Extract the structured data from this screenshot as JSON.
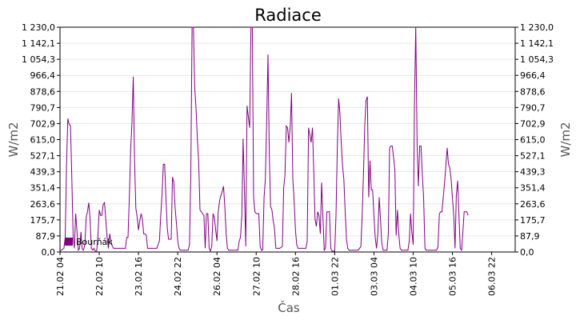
{
  "chart_data": {
    "type": "line",
    "title": "Radiace",
    "xlabel": "Čas",
    "ylabel": "W/m2",
    "ylabel_right": "W/m2",
    "ylim": [
      0,
      1230
    ],
    "y_ticks": [
      0,
      87.9,
      175.7,
      263.6,
      351.4,
      439.3,
      527.1,
      615.0,
      702.9,
      790.7,
      878.6,
      966.4,
      1054.3,
      1142.1,
      1230.0
    ],
    "y_tick_labels": [
      "0,0",
      "87,9",
      "175,7",
      "263,6",
      "351,4",
      "439,3",
      "527,1",
      "615,0",
      "702,9",
      "790,7",
      "878,6",
      "966,4",
      "1 054,3",
      "1 142,1",
      "1 230,0"
    ],
    "x_unit": "hours since first tick",
    "xlim": [
      0,
      348
    ],
    "x_ticks": [
      0,
      30,
      60,
      90,
      120,
      150,
      180,
      210,
      240,
      270,
      300,
      330
    ],
    "x_tick_labels": [
      "21.02 04",
      "22.02 10",
      "23.02 16",
      "24.02 22",
      "26.02 04",
      "27.02 10",
      "28.02 16",
      "01.03 22",
      "03.03 04",
      "04.03 10",
      "05.03 16",
      "06.03 22"
    ],
    "grid": "horizontal",
    "legend": {
      "position": "bottom-left",
      "entries": [
        {
          "name": "Bourňák",
          "color": "#800080"
        }
      ]
    },
    "series": [
      {
        "name": "Bourňák",
        "color": "#800080",
        "points": [
          [
            0,
            5
          ],
          [
            3,
            20
          ],
          [
            4,
            80
          ],
          [
            5,
            480
          ],
          [
            6,
            730
          ],
          [
            7,
            700
          ],
          [
            8,
            690
          ],
          [
            9,
            420
          ],
          [
            10,
            90
          ],
          [
            11,
            20
          ],
          [
            12,
            210
          ],
          [
            13,
            110
          ],
          [
            14,
            10
          ],
          [
            15,
            20
          ],
          [
            16,
            110
          ],
          [
            17,
            15
          ],
          [
            18,
            10
          ],
          [
            19,
            40
          ],
          [
            20,
            190
          ],
          [
            21,
            220
          ],
          [
            22,
            270
          ],
          [
            23,
            180
          ],
          [
            24,
            20
          ],
          [
            25,
            10
          ],
          [
            26,
            20
          ],
          [
            27,
            5
          ],
          [
            28,
            5
          ],
          [
            29,
            90
          ],
          [
            30,
            230
          ],
          [
            31,
            200
          ],
          [
            32,
            200
          ],
          [
            33,
            260
          ],
          [
            34,
            270
          ],
          [
            35,
            180
          ],
          [
            36,
            80
          ],
          [
            37,
            20
          ],
          [
            38,
            100
          ],
          [
            39,
            60
          ],
          [
            40,
            30
          ],
          [
            41,
            20
          ],
          [
            42,
            20
          ],
          [
            44,
            20
          ],
          [
            46,
            20
          ],
          [
            48,
            20
          ],
          [
            50,
            20
          ],
          [
            51,
            80
          ],
          [
            52,
            80
          ],
          [
            53,
            300
          ],
          [
            54,
            560
          ],
          [
            55,
            700
          ],
          [
            56,
            960
          ],
          [
            57,
            500
          ],
          [
            58,
            240
          ],
          [
            59,
            190
          ],
          [
            60,
            120
          ],
          [
            61,
            170
          ],
          [
            62,
            210
          ],
          [
            63,
            180
          ],
          [
            64,
            100
          ],
          [
            65,
            100
          ],
          [
            66,
            90
          ],
          [
            67,
            20
          ],
          [
            68,
            20
          ],
          [
            70,
            20
          ],
          [
            72,
            20
          ],
          [
            74,
            20
          ],
          [
            76,
            60
          ],
          [
            77,
            200
          ],
          [
            78,
            310
          ],
          [
            79,
            480
          ],
          [
            80,
            480
          ],
          [
            81,
            300
          ],
          [
            82,
            130
          ],
          [
            83,
            70
          ],
          [
            84,
            70
          ],
          [
            85,
            70
          ],
          [
            86,
            410
          ],
          [
            87,
            380
          ],
          [
            88,
            240
          ],
          [
            89,
            160
          ],
          [
            90,
            60
          ],
          [
            91,
            20
          ],
          [
            92,
            10
          ],
          [
            94,
            10
          ],
          [
            96,
            10
          ],
          [
            98,
            10
          ],
          [
            99,
            40
          ],
          [
            100,
            420
          ],
          [
            101,
            1230
          ],
          [
            102,
            1230
          ],
          [
            103,
            900
          ],
          [
            104,
            790
          ],
          [
            105,
            620
          ],
          [
            106,
            500
          ],
          [
            107,
            230
          ],
          [
            108,
            220
          ],
          [
            109,
            210
          ],
          [
            110,
            200
          ],
          [
            111,
            20
          ],
          [
            112,
            210
          ],
          [
            113,
            210
          ],
          [
            114,
            20
          ],
          [
            115,
            5
          ],
          [
            116,
            30
          ],
          [
            117,
            210
          ],
          [
            118,
            190
          ],
          [
            119,
            120
          ],
          [
            120,
            60
          ],
          [
            121,
            220
          ],
          [
            122,
            280
          ],
          [
            123,
            310
          ],
          [
            124,
            330
          ],
          [
            125,
            360
          ],
          [
            126,
            250
          ],
          [
            127,
            100
          ],
          [
            128,
            20
          ],
          [
            129,
            10
          ],
          [
            130,
            10
          ],
          [
            132,
            10
          ],
          [
            134,
            10
          ],
          [
            136,
            10
          ],
          [
            137,
            60
          ],
          [
            138,
            80
          ],
          [
            139,
            200
          ],
          [
            140,
            620
          ],
          [
            141,
            350
          ],
          [
            142,
            30
          ],
          [
            143,
            800
          ],
          [
            144,
            740
          ],
          [
            145,
            680
          ],
          [
            146,
            1230
          ],
          [
            147,
            1230
          ],
          [
            148,
            300
          ],
          [
            149,
            220
          ],
          [
            150,
            210
          ],
          [
            151,
            210
          ],
          [
            152,
            210
          ],
          [
            153,
            30
          ],
          [
            154,
            10
          ],
          [
            155,
            10
          ],
          [
            156,
            300
          ],
          [
            157,
            400
          ],
          [
            158,
            700
          ],
          [
            159,
            1080
          ],
          [
            160,
            540
          ],
          [
            161,
            250
          ],
          [
            162,
            230
          ],
          [
            163,
            170
          ],
          [
            164,
            130
          ],
          [
            165,
            20
          ],
          [
            166,
            20
          ],
          [
            168,
            20
          ],
          [
            170,
            30
          ],
          [
            171,
            350
          ],
          [
            172,
            420
          ],
          [
            173,
            690
          ],
          [
            174,
            680
          ],
          [
            175,
            600
          ],
          [
            176,
            690
          ],
          [
            177,
            870
          ],
          [
            178,
            400
          ],
          [
            179,
            280
          ],
          [
            180,
            120
          ],
          [
            181,
            40
          ],
          [
            182,
            20
          ],
          [
            184,
            20
          ],
          [
            186,
            20
          ],
          [
            188,
            20
          ],
          [
            189,
            60
          ],
          [
            190,
            680
          ],
          [
            191,
            640
          ],
          [
            192,
            600
          ],
          [
            193,
            680
          ],
          [
            194,
            440
          ],
          [
            195,
            180
          ],
          [
            196,
            140
          ],
          [
            197,
            220
          ],
          [
            198,
            200
          ],
          [
            199,
            100
          ],
          [
            200,
            380
          ],
          [
            201,
            200
          ],
          [
            202,
            10
          ],
          [
            203,
            20
          ],
          [
            204,
            220
          ],
          [
            205,
            220
          ],
          [
            206,
            220
          ],
          [
            207,
            20
          ],
          [
            208,
            5
          ],
          [
            210,
            5
          ],
          [
            211,
            200
          ],
          [
            212,
            560
          ],
          [
            213,
            840
          ],
          [
            214,
            760
          ],
          [
            215,
            600
          ],
          [
            216,
            470
          ],
          [
            217,
            400
          ],
          [
            218,
            230
          ],
          [
            219,
            70
          ],
          [
            220,
            20
          ],
          [
            221,
            10
          ],
          [
            222,
            10
          ],
          [
            224,
            10
          ],
          [
            226,
            10
          ],
          [
            228,
            10
          ],
          [
            230,
            30
          ],
          [
            231,
            200
          ],
          [
            232,
            420
          ],
          [
            233,
            700
          ],
          [
            234,
            830
          ],
          [
            235,
            850
          ],
          [
            236,
            300
          ],
          [
            237,
            500
          ],
          [
            238,
            340
          ],
          [
            239,
            340
          ],
          [
            240,
            200
          ],
          [
            241,
            80
          ],
          [
            242,
            20
          ],
          [
            243,
            100
          ],
          [
            244,
            300
          ],
          [
            245,
            180
          ],
          [
            246,
            50
          ],
          [
            247,
            10
          ],
          [
            248,
            10
          ],
          [
            250,
            10
          ],
          [
            251,
            100
          ],
          [
            252,
            570
          ],
          [
            253,
            580
          ],
          [
            254,
            580
          ],
          [
            255,
            520
          ],
          [
            256,
            450
          ],
          [
            257,
            90
          ],
          [
            258,
            230
          ],
          [
            259,
            100
          ],
          [
            260,
            20
          ],
          [
            261,
            10
          ],
          [
            262,
            10
          ],
          [
            264,
            10
          ],
          [
            266,
            10
          ],
          [
            267,
            60
          ],
          [
            268,
            210
          ],
          [
            269,
            110
          ],
          [
            270,
            40
          ],
          [
            271,
            820
          ],
          [
            272,
            1230
          ],
          [
            273,
            580
          ],
          [
            274,
            360
          ],
          [
            275,
            580
          ],
          [
            276,
            580
          ],
          [
            277,
            420
          ],
          [
            278,
            300
          ],
          [
            279,
            20
          ],
          [
            280,
            10
          ],
          [
            282,
            10
          ],
          [
            284,
            10
          ],
          [
            286,
            10
          ],
          [
            288,
            10
          ],
          [
            289,
            30
          ],
          [
            290,
            210
          ],
          [
            291,
            220
          ],
          [
            292,
            220
          ],
          [
            293,
            300
          ],
          [
            294,
            380
          ],
          [
            295,
            470
          ],
          [
            296,
            570
          ],
          [
            297,
            480
          ],
          [
            298,
            460
          ],
          [
            299,
            400
          ],
          [
            300,
            300
          ],
          [
            301,
            200
          ],
          [
            302,
            20
          ],
          [
            303,
            310
          ],
          [
            304,
            390
          ],
          [
            305,
            200
          ],
          [
            306,
            20
          ],
          [
            307,
            10
          ],
          [
            308,
            110
          ],
          [
            309,
            220
          ],
          [
            310,
            220
          ],
          [
            311,
            220
          ],
          [
            312,
            200
          ]
        ]
      }
    ]
  }
}
